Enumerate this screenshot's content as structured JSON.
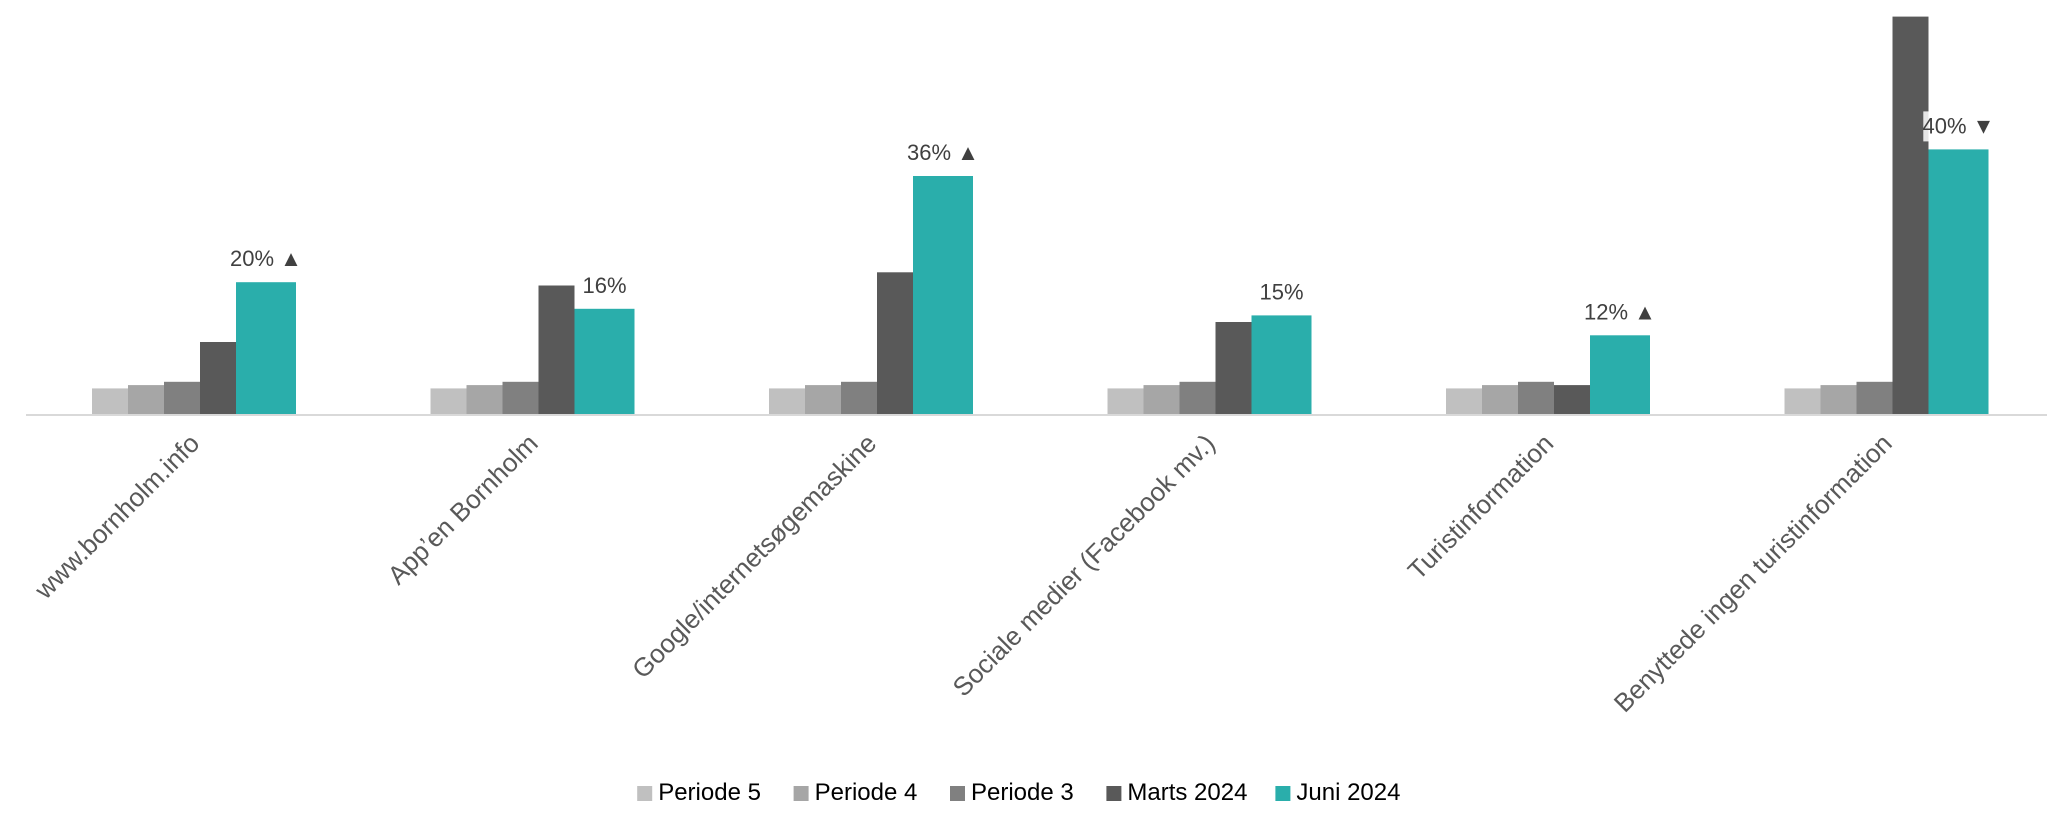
{
  "chart_data": {
    "type": "bar",
    "categories": [
      "www.bornholm.info",
      "App’en Bornholm",
      "Google/internetsøgemaskine",
      "Sociale medier (Facebook mv.)",
      "Turistinformation",
      "Benyttede ingen turistinformation"
    ],
    "series": [
      {
        "name": "Periode 5",
        "color": "#c0c0c0",
        "values": [
          4,
          4,
          4,
          4,
          4,
          4
        ]
      },
      {
        "name": "Periode 4",
        "color": "#a6a6a6",
        "values": [
          4.5,
          4.5,
          4.5,
          4.5,
          4.5,
          4.5
        ]
      },
      {
        "name": "Periode 3",
        "color": "#808080",
        "values": [
          5,
          5,
          5,
          5,
          5,
          5
        ]
      },
      {
        "name": "Marts 2024",
        "color": "#595959",
        "values": [
          11,
          19.5,
          21.5,
          14,
          4.5,
          60
        ]
      },
      {
        "name": "Juni 2024",
        "color": "#2aaeab",
        "values": [
          20,
          16,
          36,
          15,
          12,
          40
        ]
      }
    ],
    "data_labels": [
      {
        "text": "20%",
        "trend": "up"
      },
      {
        "text": "16%",
        "trend": ""
      },
      {
        "text": "36%",
        "trend": "up"
      },
      {
        "text": "15%",
        "trend": ""
      },
      {
        "text": "12%",
        "trend": "up"
      },
      {
        "text": "40%",
        "trend": "down"
      }
    ],
    "trend_symbols": {
      "up": "▲",
      "down": "▼"
    },
    "ylim": [
      0,
      61
    ],
    "title": "",
    "xlabel": "",
    "ylabel": "",
    "grid": false,
    "legend": "bottom"
  }
}
